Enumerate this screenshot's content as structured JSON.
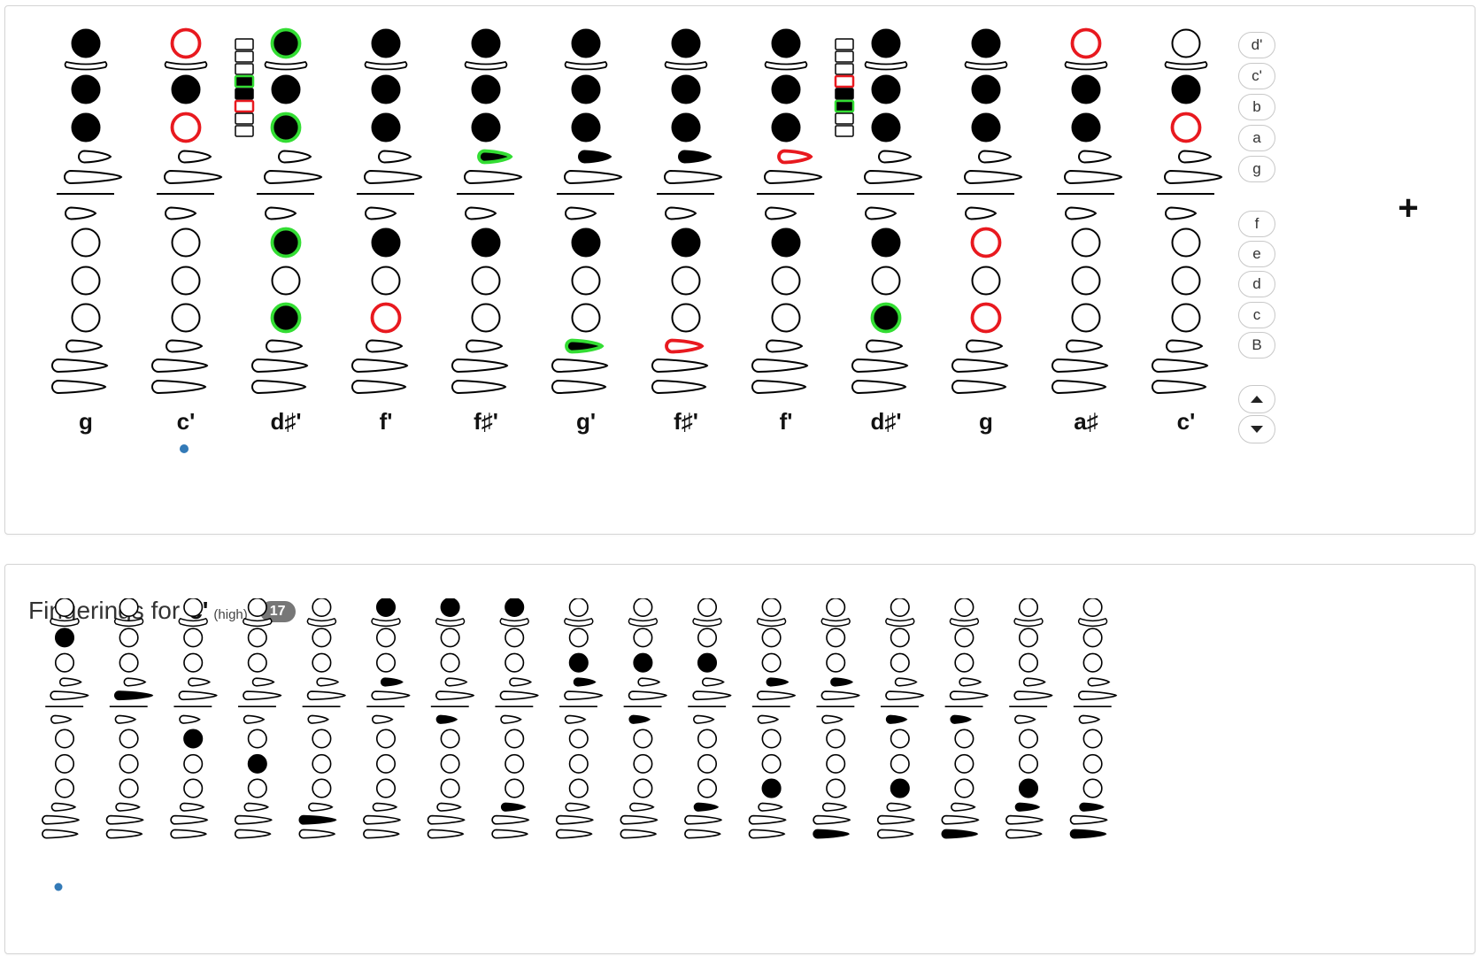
{
  "sequence": {
    "columns": [
      {
        "note": "g",
        "selected": false,
        "top": [
          "f",
          "f",
          "f"
        ],
        "thumbKeys": [
          "o",
          "o"
        ],
        "side": "o",
        "bottom": [
          "o",
          "o",
          "o"
        ],
        "pinky": [
          "o",
          "o",
          "o"
        ],
        "oct": null
      },
      {
        "note": "c'",
        "selected": true,
        "top": [
          "r",
          "f",
          "r"
        ],
        "thumbKeys": [
          "o",
          "o"
        ],
        "side": "o",
        "bottom": [
          "o",
          "o",
          "o"
        ],
        "pinky": [
          "o",
          "o",
          "o"
        ],
        "oct": null
      },
      {
        "note": "d♯'",
        "selected": false,
        "top": [
          "g",
          "f",
          "g"
        ],
        "thumbKeys": [
          "o",
          "o"
        ],
        "side": "o",
        "bottom": [
          "g",
          "o",
          "g"
        ],
        "pinky": [
          "o",
          "o",
          "o"
        ],
        "oct": [
          "o",
          "o",
          "o",
          "g",
          "f",
          "r",
          "o",
          "o"
        ]
      },
      {
        "note": "f'",
        "selected": false,
        "top": [
          "f",
          "f",
          "f"
        ],
        "thumbKeys": [
          "o",
          "o"
        ],
        "side": "o",
        "bottom": [
          "f",
          "o",
          "r"
        ],
        "pinky": [
          "o",
          "o",
          "o"
        ],
        "oct": null
      },
      {
        "note": "f♯'",
        "selected": false,
        "top": [
          "f",
          "f",
          "f"
        ],
        "thumbKeys": [
          "g",
          "o"
        ],
        "side": "o",
        "bottom": [
          "f",
          "o",
          "o"
        ],
        "pinky": [
          "o",
          "o",
          "o"
        ],
        "oct": null
      },
      {
        "note": "g'",
        "selected": false,
        "top": [
          "f",
          "f",
          "f"
        ],
        "thumbKeys": [
          "f",
          "o"
        ],
        "side": "o",
        "bottom": [
          "f",
          "o",
          "o"
        ],
        "pinky": [
          "g",
          "o",
          "o"
        ],
        "oct": null
      },
      {
        "note": "f♯'",
        "selected": false,
        "top": [
          "f",
          "f",
          "f"
        ],
        "thumbKeys": [
          "f",
          "o"
        ],
        "side": "o",
        "bottom": [
          "f",
          "o",
          "o"
        ],
        "pinky": [
          "r",
          "o",
          "o"
        ],
        "oct": null
      },
      {
        "note": "f'",
        "selected": false,
        "top": [
          "f",
          "f",
          "f"
        ],
        "thumbKeys": [
          "r",
          "o"
        ],
        "side": "o",
        "bottom": [
          "f",
          "o",
          "o"
        ],
        "pinky": [
          "o",
          "o",
          "o"
        ],
        "oct": null
      },
      {
        "note": "d♯'",
        "selected": false,
        "top": [
          "f",
          "f",
          "f"
        ],
        "thumbKeys": [
          "o",
          "o"
        ],
        "side": "o",
        "bottom": [
          "f",
          "o",
          "g"
        ],
        "pinky": [
          "o",
          "o",
          "o"
        ],
        "oct": [
          "o",
          "o",
          "o",
          "r",
          "f",
          "g",
          "o",
          "o"
        ]
      },
      {
        "note": "g",
        "selected": false,
        "top": [
          "f",
          "f",
          "f"
        ],
        "thumbKeys": [
          "o",
          "o"
        ],
        "side": "o",
        "bottom": [
          "r",
          "o",
          "r"
        ],
        "pinky": [
          "o",
          "o",
          "o"
        ],
        "oct": null
      },
      {
        "note": "a♯",
        "selected": false,
        "top": [
          "r",
          "f",
          "f"
        ],
        "thumbKeys": [
          "o",
          "o"
        ],
        "side": "o",
        "bottom": [
          "o",
          "o",
          "o"
        ],
        "pinky": [
          "o",
          "o",
          "o"
        ],
        "oct": null
      },
      {
        "note": "c'",
        "selected": false,
        "top": [
          "o",
          "f",
          "r"
        ],
        "thumbKeys": [
          "o",
          "o"
        ],
        "side": "o",
        "bottom": [
          "o",
          "o",
          "o"
        ],
        "pinky": [
          "o",
          "o",
          "o"
        ],
        "oct": null
      }
    ],
    "note_buttons_upper": [
      "d'",
      "c'",
      "b",
      "a",
      "g"
    ],
    "note_buttons_lower": [
      "f",
      "e",
      "d",
      "c",
      "B"
    ],
    "up_icon": "chevron-up-icon",
    "down_icon": "chevron-down-icon",
    "add_label": "+",
    "colors": {
      "filled": "#000000",
      "outline": "#000000",
      "changed_on": "#33dd33",
      "changed_off": "#e8191f",
      "selected_dot": "#337ab7"
    }
  },
  "fingerings": {
    "title": "Fingerings for",
    "note": "c'",
    "qualifier": "(high)",
    "count": "17",
    "variants": [
      {
        "selected": true,
        "top": [
          "o",
          "f",
          "o"
        ],
        "thumbKeys": [
          "o",
          "o"
        ],
        "side": "o",
        "bottom": [
          "o",
          "o",
          "o"
        ],
        "pinky": [
          "o",
          "o",
          "o"
        ]
      },
      {
        "selected": false,
        "top": [
          "o",
          "o",
          "o"
        ],
        "thumbKeys": [
          "o",
          "f"
        ],
        "side": "o",
        "bottom": [
          "o",
          "o",
          "o"
        ],
        "pinky": [
          "o",
          "o",
          "o"
        ]
      },
      {
        "selected": false,
        "top": [
          "o",
          "o",
          "o"
        ],
        "thumbKeys": [
          "o",
          "o"
        ],
        "side": "o",
        "bottom": [
          "f",
          "o",
          "o"
        ],
        "pinky": [
          "o",
          "o",
          "o"
        ]
      },
      {
        "selected": false,
        "top": [
          "o",
          "o",
          "o"
        ],
        "thumbKeys": [
          "o",
          "o"
        ],
        "side": "o",
        "bottom": [
          "o",
          "f",
          "o"
        ],
        "pinky": [
          "o",
          "o",
          "o"
        ]
      },
      {
        "selected": false,
        "top": [
          "o",
          "o",
          "o"
        ],
        "thumbKeys": [
          "o",
          "o"
        ],
        "side": "o",
        "bottom": [
          "o",
          "o",
          "o"
        ],
        "pinky": [
          "o",
          "f",
          "o"
        ]
      },
      {
        "selected": false,
        "top": [
          "f",
          "o",
          "o"
        ],
        "thumbKeys": [
          "f",
          "o"
        ],
        "side": "o",
        "bottom": [
          "o",
          "o",
          "o"
        ],
        "pinky": [
          "o",
          "o",
          "o"
        ]
      },
      {
        "selected": false,
        "top": [
          "f",
          "o",
          "o"
        ],
        "thumbKeys": [
          "o",
          "o"
        ],
        "side": "f",
        "bottom": [
          "o",
          "o",
          "o"
        ],
        "pinky": [
          "o",
          "o",
          "o"
        ]
      },
      {
        "selected": false,
        "top": [
          "f",
          "o",
          "o"
        ],
        "thumbKeys": [
          "o",
          "o"
        ],
        "side": "o",
        "bottom": [
          "o",
          "o",
          "o"
        ],
        "pinky": [
          "f",
          "o",
          "o"
        ]
      },
      {
        "selected": false,
        "top": [
          "o",
          "o",
          "f"
        ],
        "thumbKeys": [
          "f",
          "o"
        ],
        "side": "o",
        "bottom": [
          "o",
          "o",
          "o"
        ],
        "pinky": [
          "o",
          "o",
          "o"
        ]
      },
      {
        "selected": false,
        "top": [
          "o",
          "o",
          "f"
        ],
        "thumbKeys": [
          "o",
          "o"
        ],
        "side": "f",
        "bottom": [
          "o",
          "o",
          "o"
        ],
        "pinky": [
          "o",
          "o",
          "o"
        ]
      },
      {
        "selected": false,
        "top": [
          "o",
          "o",
          "f"
        ],
        "thumbKeys": [
          "o",
          "o"
        ],
        "side": "o",
        "bottom": [
          "o",
          "o",
          "o"
        ],
        "pinky": [
          "f",
          "o",
          "o"
        ]
      },
      {
        "selected": false,
        "top": [
          "o",
          "o",
          "o"
        ],
        "thumbKeys": [
          "f",
          "o"
        ],
        "side": "o",
        "bottom": [
          "o",
          "o",
          "f"
        ],
        "pinky": [
          "o",
          "o",
          "o"
        ]
      },
      {
        "selected": false,
        "top": [
          "o",
          "o",
          "o"
        ],
        "thumbKeys": [
          "f",
          "o"
        ],
        "side": "o",
        "bottom": [
          "o",
          "o",
          "o"
        ],
        "pinky": [
          "o",
          "o",
          "f"
        ]
      },
      {
        "selected": false,
        "top": [
          "o",
          "o",
          "o"
        ],
        "thumbKeys": [
          "o",
          "o"
        ],
        "side": "f",
        "bottom": [
          "o",
          "o",
          "f"
        ],
        "pinky": [
          "o",
          "o",
          "o"
        ]
      },
      {
        "selected": false,
        "top": [
          "o",
          "o",
          "o"
        ],
        "thumbKeys": [
          "o",
          "o"
        ],
        "side": "f",
        "bottom": [
          "o",
          "o",
          "o"
        ],
        "pinky": [
          "o",
          "o",
          "f"
        ]
      },
      {
        "selected": false,
        "top": [
          "o",
          "o",
          "o"
        ],
        "thumbKeys": [
          "o",
          "o"
        ],
        "side": "o",
        "bottom": [
          "o",
          "o",
          "f"
        ],
        "pinky": [
          "f",
          "o",
          "o"
        ]
      },
      {
        "selected": false,
        "top": [
          "o",
          "o",
          "o"
        ],
        "thumbKeys": [
          "o",
          "o"
        ],
        "side": "o",
        "bottom": [
          "o",
          "o",
          "o"
        ],
        "pinky": [
          "f",
          "o",
          "f"
        ]
      }
    ]
  }
}
